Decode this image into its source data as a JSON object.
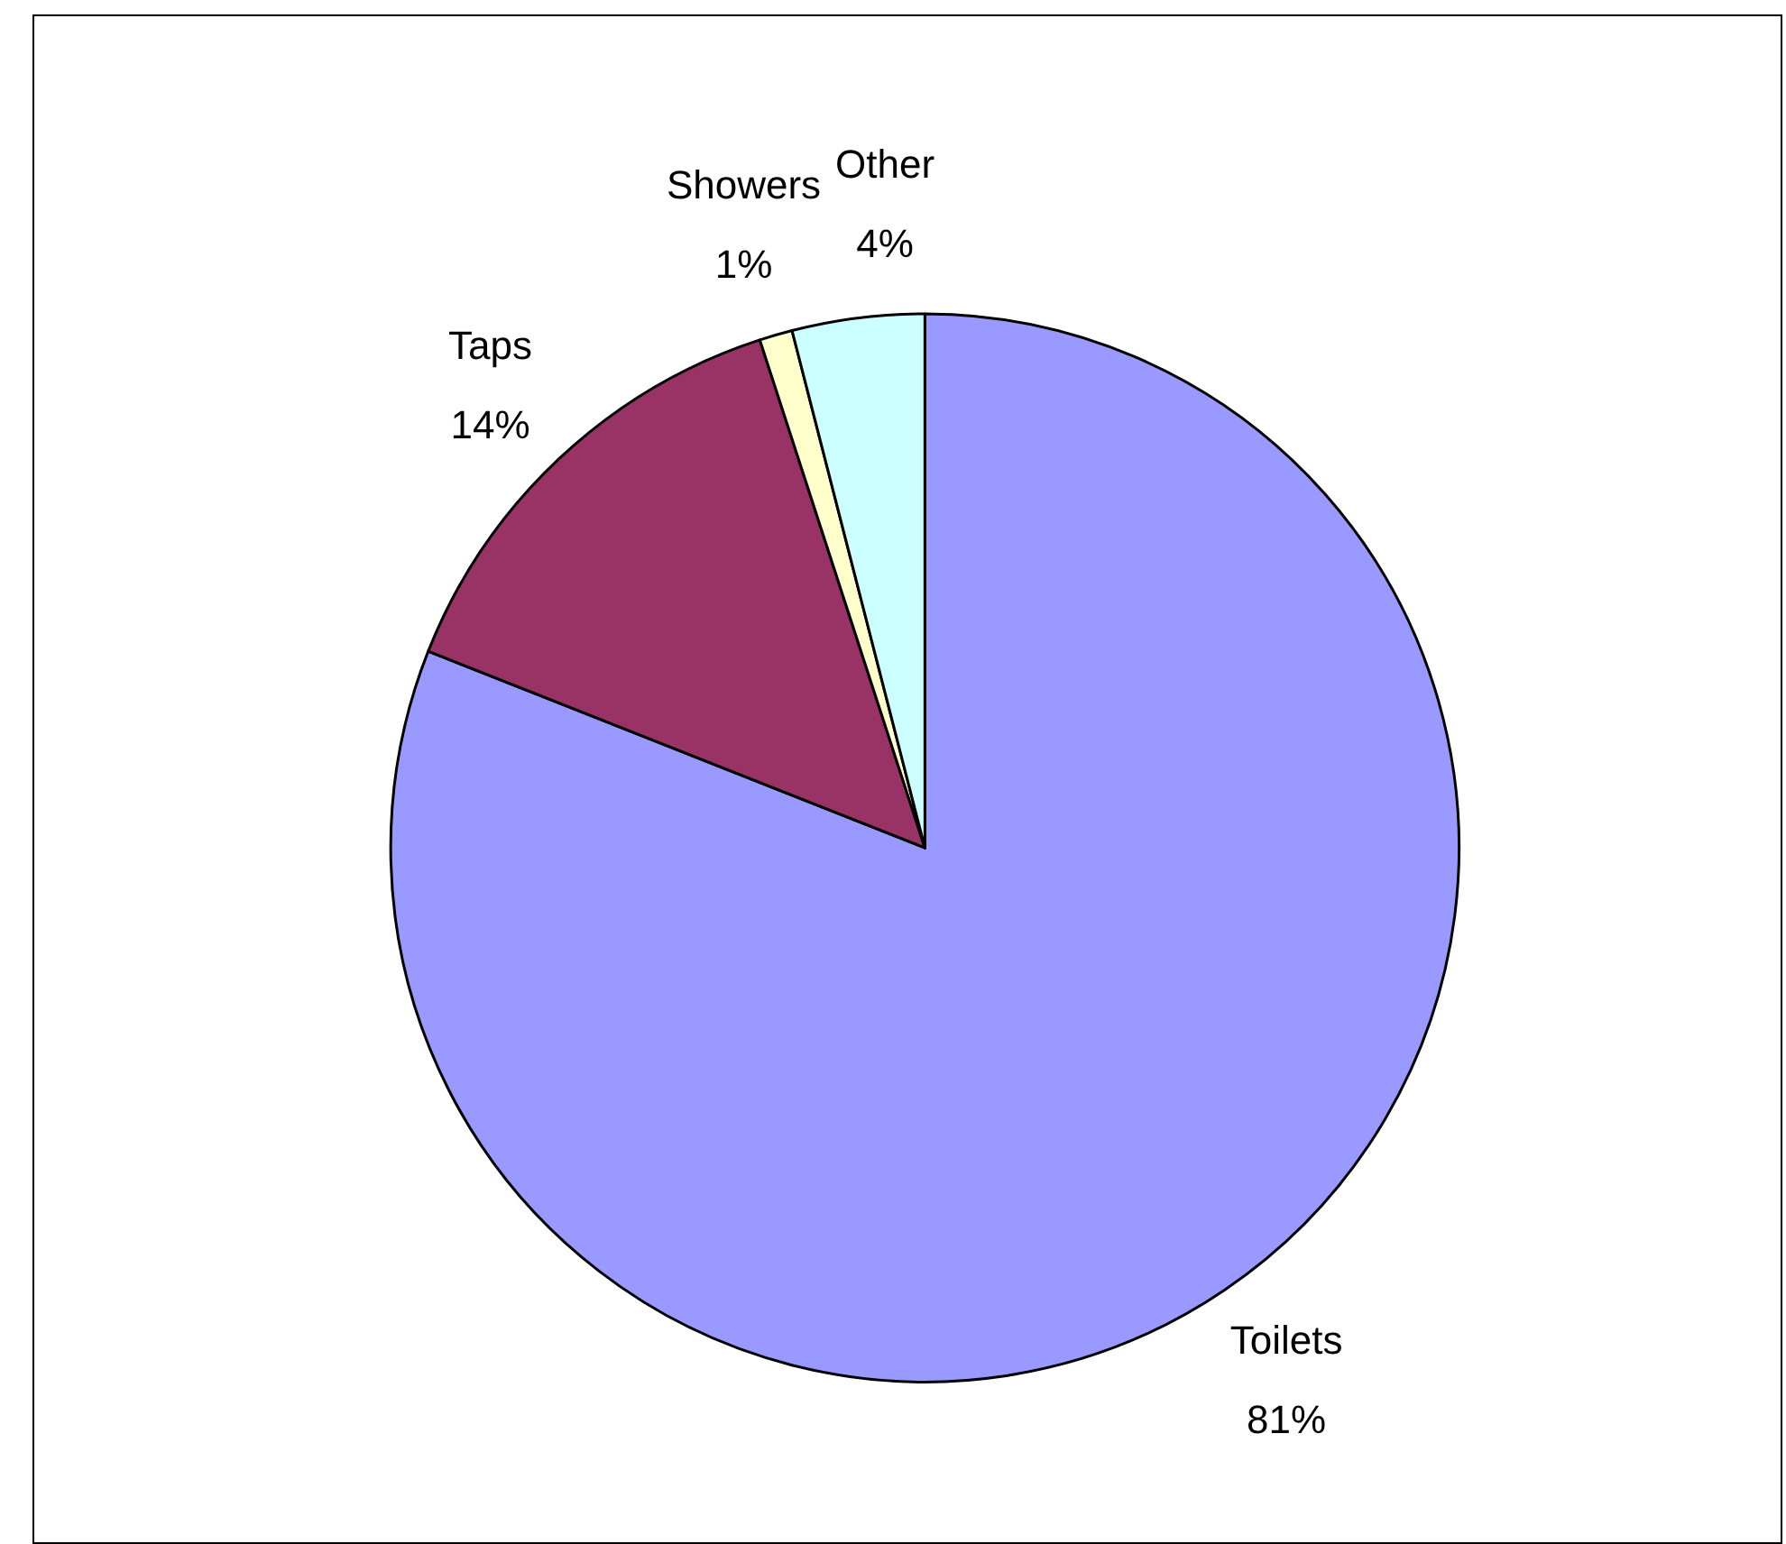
{
  "chart_data": {
    "type": "pie",
    "categories": [
      "Toilets",
      "Taps",
      "Showers",
      "Other"
    ],
    "values": [
      81,
      14,
      1,
      4
    ],
    "value_labels": [
      "81%",
      "14%",
      "1%",
      "4%"
    ],
    "colors": [
      "#9999ff",
      "#993366",
      "#ffffcc",
      "#ccffff"
    ],
    "legend": false
  }
}
